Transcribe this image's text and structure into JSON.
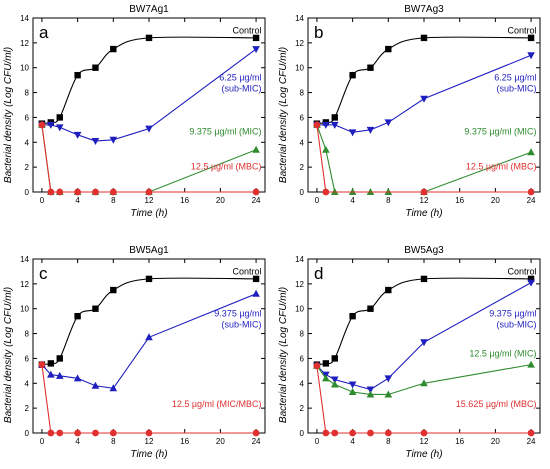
{
  "shared_axis_labels": {
    "ylabel": "Bacterial density (Log CFU/ml)",
    "xlabel": "Time (h)"
  },
  "chart_data": [
    {
      "type": "line",
      "panel_letter": "a",
      "title": "BW7Ag1",
      "xlabel": "Time (h)",
      "ylabel": "Bacterial density (Log CFU/ml)",
      "xlim": [
        -1,
        25
      ],
      "ylim": [
        0,
        14
      ],
      "xticks": [
        0,
        4,
        8,
        12,
        16,
        20,
        24
      ],
      "yticks": [
        0,
        2,
        4,
        6,
        8,
        10,
        12,
        14
      ],
      "series": [
        {
          "name": "Control",
          "color": "#000000",
          "marker": "square",
          "smooth": true,
          "x": [
            0,
            1,
            2,
            4,
            6,
            8,
            12,
            24
          ],
          "y": [
            5.5,
            5.6,
            6.0,
            9.4,
            10.0,
            11.5,
            12.4,
            12.4
          ],
          "label_lines": [
            "Control"
          ]
        },
        {
          "name": "6.25 µg/ml (sub-MIC)",
          "color": "#1f1fbf",
          "marker": "triangle-down",
          "x": [
            0,
            1,
            2,
            4,
            6,
            8,
            12,
            24
          ],
          "y": [
            5.4,
            5.4,
            5.2,
            4.6,
            4.1,
            4.2,
            5.1,
            11.5
          ],
          "label_lines": [
            "6.25 µg/ml",
            "(sub-MIC)"
          ]
        },
        {
          "name": "9.375 µg/ml (MIC)",
          "color": "#2e8b2e",
          "marker": "triangle-up",
          "x": [
            0,
            1,
            2,
            4,
            6,
            8,
            12,
            24
          ],
          "y": [
            5.4,
            0,
            0,
            0,
            0,
            0,
            0,
            3.4
          ],
          "label_lines": [
            "9.375 µg/ml (MIC)"
          ]
        },
        {
          "name": "12.5 µg/ml (MBC)",
          "color": "#e03030",
          "marker": "circle",
          "x": [
            0,
            1,
            2,
            4,
            6,
            8,
            12,
            24
          ],
          "y": [
            5.4,
            0,
            0,
            0,
            0,
            0,
            0,
            0
          ],
          "label_lines": [
            "12.5 µg/ml (MBC)"
          ]
        }
      ]
    },
    {
      "type": "line",
      "panel_letter": "b",
      "title": "BW7Ag3",
      "xlabel": "Time (h)",
      "ylabel": "Bacterial density (Log CFU/ml)",
      "xlim": [
        -1,
        25
      ],
      "ylim": [
        0,
        14
      ],
      "xticks": [
        0,
        4,
        8,
        12,
        16,
        20,
        24
      ],
      "yticks": [
        0,
        2,
        4,
        6,
        8,
        10,
        12,
        14
      ],
      "series": [
        {
          "name": "Control",
          "color": "#000000",
          "marker": "square",
          "smooth": true,
          "x": [
            0,
            1,
            2,
            4,
            6,
            8,
            12,
            24
          ],
          "y": [
            5.5,
            5.6,
            6.0,
            9.4,
            10.0,
            11.5,
            12.4,
            12.4
          ],
          "label_lines": [
            "Control"
          ]
        },
        {
          "name": "6.25 µg/ml (sub-MIC)",
          "color": "#1f1fbf",
          "marker": "triangle-down",
          "x": [
            0,
            1,
            2,
            4,
            6,
            8,
            12,
            24
          ],
          "y": [
            5.4,
            5.4,
            5.4,
            4.8,
            5.0,
            5.6,
            7.5,
            11.0
          ],
          "label_lines": [
            "6.25 µg/ml",
            "(sub-MIC)"
          ]
        },
        {
          "name": "9.375 µg/ml (MIC)",
          "color": "#2e8b2e",
          "marker": "triangle-up",
          "x": [
            0,
            1,
            2,
            4,
            6,
            8,
            12,
            24
          ],
          "y": [
            5.4,
            3.4,
            0,
            0,
            0,
            0,
            0,
            3.2
          ],
          "label_lines": [
            "9.375 µg/ml (MIC)"
          ]
        },
        {
          "name": "12.5 µg/ml (MBC)",
          "color": "#e03030",
          "marker": "circle",
          "x": [
            0,
            1,
            12,
            24
          ],
          "y": [
            5.4,
            0,
            0,
            0
          ],
          "label_lines": [
            "12.5 µg/ml (MBC)"
          ]
        }
      ]
    },
    {
      "type": "line",
      "panel_letter": "c",
      "title": "BW5Ag1",
      "xlabel": "Time (h)",
      "ylabel": "Bacterial density (Log CFU/ml)",
      "xlim": [
        -1,
        25
      ],
      "ylim": [
        0,
        14
      ],
      "xticks": [
        0,
        4,
        8,
        12,
        16,
        20,
        24
      ],
      "yticks": [
        0,
        2,
        4,
        6,
        8,
        10,
        12,
        14
      ],
      "series": [
        {
          "name": "Control",
          "color": "#000000",
          "marker": "square",
          "smooth": true,
          "x": [
            0,
            1,
            2,
            4,
            6,
            8,
            12,
            24
          ],
          "y": [
            5.5,
            5.6,
            6.0,
            9.4,
            10.0,
            11.5,
            12.4,
            12.4
          ],
          "label_lines": [
            "Control"
          ]
        },
        {
          "name": "9.375 µg/ml (sub-MIC)",
          "color": "#1f1fbf",
          "marker": "triangle-up",
          "x": [
            0,
            1,
            2,
            4,
            6,
            8,
            12,
            24
          ],
          "y": [
            5.5,
            4.7,
            4.6,
            4.4,
            3.8,
            3.6,
            7.7,
            11.2
          ],
          "label_lines": [
            "9.375 µg/ml",
            "(sub-MIC)"
          ]
        },
        {
          "name": "12.5 µg/ml (MIC/MBC)",
          "color": "#e03030",
          "marker": "circle",
          "x": [
            0,
            1,
            2,
            4,
            6,
            8,
            12,
            24
          ],
          "y": [
            5.5,
            0,
            0,
            0,
            0,
            0,
            0,
            0
          ],
          "label_lines": [
            "12.5 µg/ml (MIC/MBC)"
          ]
        }
      ]
    },
    {
      "type": "line",
      "panel_letter": "d",
      "title": "BW5Ag3",
      "xlabel": "Time (h)",
      "ylabel": "Bacterial density (Log CFU/ml)",
      "xlim": [
        -1,
        25
      ],
      "ylim": [
        0,
        14
      ],
      "xticks": [
        0,
        4,
        8,
        12,
        16,
        20,
        24
      ],
      "yticks": [
        0,
        2,
        4,
        6,
        8,
        10,
        12,
        14
      ],
      "series": [
        {
          "name": "Control",
          "color": "#000000",
          "marker": "square",
          "smooth": true,
          "x": [
            0,
            1,
            2,
            4,
            6,
            8,
            12,
            24
          ],
          "y": [
            5.5,
            5.6,
            6.0,
            9.4,
            10.0,
            11.5,
            12.4,
            12.4
          ],
          "label_lines": [
            "Control"
          ]
        },
        {
          "name": "9.375 µg/ml (sub-MIC)",
          "color": "#1f1fbf",
          "marker": "triangle-down",
          "x": [
            0,
            1,
            2,
            4,
            6,
            8,
            12,
            24
          ],
          "y": [
            5.4,
            4.7,
            4.3,
            3.9,
            3.5,
            4.4,
            7.3,
            12.1
          ],
          "label_lines": [
            "9.375 µg/ml",
            "(sub-MIC)"
          ]
        },
        {
          "name": "12.5 µg/ml (MIC)",
          "color": "#2e8b2e",
          "marker": "triangle-up",
          "x": [
            0,
            1,
            2,
            4,
            6,
            8,
            12,
            24
          ],
          "y": [
            5.4,
            4.4,
            3.9,
            3.3,
            3.1,
            3.1,
            4.0,
            5.5
          ],
          "label_lines": [
            "12.5 µg/ml (MIC)"
          ]
        },
        {
          "name": "15.625 µg/ml (MBC)",
          "color": "#e03030",
          "marker": "circle",
          "x": [
            0,
            1,
            2,
            4,
            6,
            8,
            12,
            24
          ],
          "y": [
            5.4,
            0,
            0,
            0,
            0,
            0,
            0,
            0
          ],
          "label_lines": [
            "15.625 µg/ml (MBC)"
          ]
        }
      ]
    }
  ]
}
